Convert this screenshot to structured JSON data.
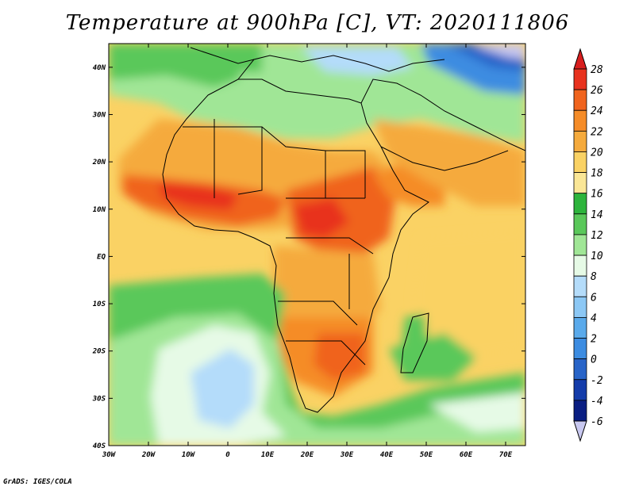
{
  "title": "Temperature at 900hPa [C], VT: 2020111806",
  "credit": "GrADS: IGES/COLA",
  "map": {
    "lat_labels": [
      "40N",
      "30N",
      "20N",
      "10N",
      "EQ",
      "10S",
      "20S",
      "30S",
      "40S"
    ],
    "lon_labels": [
      "30W",
      "20W",
      "10W",
      "0",
      "10E",
      "20E",
      "30E",
      "40E",
      "50E",
      "60E",
      "70E"
    ],
    "lat_values": [
      40,
      30,
      20,
      10,
      0,
      -10,
      -20,
      -30,
      -40
    ],
    "lon_values": [
      -30,
      -20,
      -10,
      0,
      10,
      20,
      30,
      40,
      50,
      60,
      70
    ],
    "extent": {
      "lon_min": -30,
      "lon_max": 75,
      "lat_min": -40,
      "lat_max": 45
    }
  },
  "colorbar": {
    "labels": [
      "28",
      "26",
      "24",
      "22",
      "20",
      "18",
      "16",
      "14",
      "12",
      "10",
      "8",
      "6",
      "4",
      "2",
      "0",
      "-2",
      "-4",
      "-6"
    ],
    "colors": {
      "over": "#d81e1e",
      "c26_28": "#e8321e",
      "c24_26": "#f0641e",
      "c22_24": "#f58c28",
      "c20_22": "#f5aa3c",
      "c18_20": "#fad264",
      "c16_18": "#fae696",
      "c14_16": "#2db43c",
      "c12_14": "#5ac85a",
      "c10_12": "#a0e696",
      "c8_10": "#e6fae6",
      "c6_8": "#b4dcfa",
      "c4_6": "#8cc8f5",
      "c2_4": "#5aaaeb",
      "c0_2": "#3c8ce1",
      "cm2_0": "#2864c8",
      "cm4_m2": "#143caa",
      "cm6_m4": "#0a1e82",
      "under": "#c8c8f0"
    }
  }
}
